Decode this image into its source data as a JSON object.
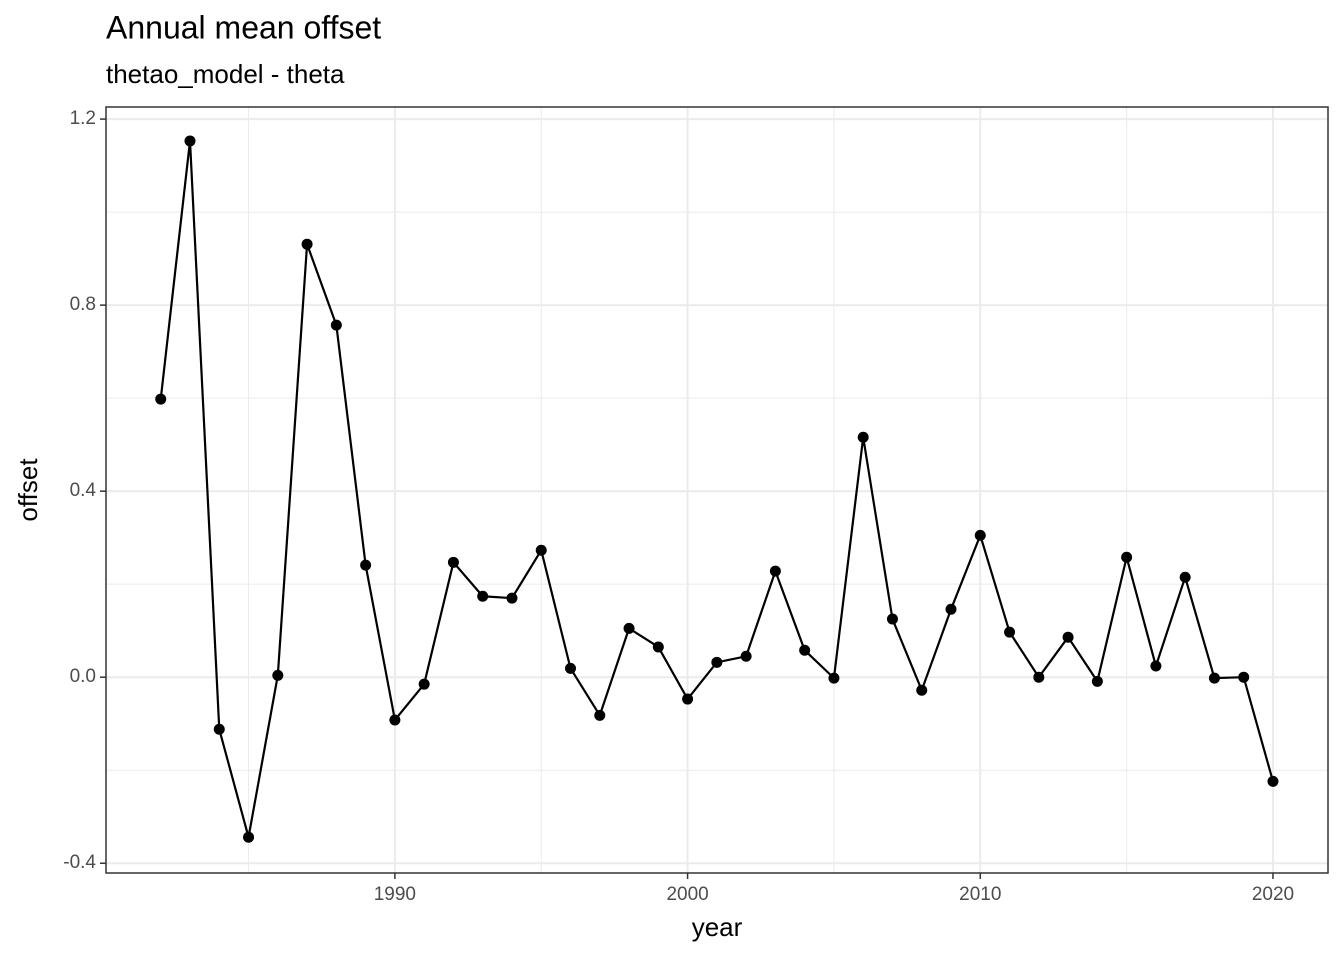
{
  "chart_data": {
    "type": "line",
    "title": "Annual mean offset",
    "subtitle": "thetao_model - theta",
    "x_label": "year",
    "y_label": "offset",
    "x": [
      1982,
      1983,
      1984,
      1985,
      1986,
      1987,
      1988,
      1989,
      1990,
      1991,
      1992,
      1993,
      1994,
      1995,
      1996,
      1997,
      1998,
      1999,
      2000,
      2001,
      2002,
      2003,
      2004,
      2005,
      2006,
      2007,
      2008,
      2009,
      2010,
      2011,
      2012,
      2013,
      2014,
      2015,
      2016,
      2017,
      2018,
      2019,
      2020
    ],
    "series": [
      {
        "name": "offset",
        "color": "#000000",
        "values": [
          0.598,
          1.153,
          -0.112,
          -0.344,
          0.004,
          0.931,
          0.757,
          0.241,
          -0.092,
          -0.015,
          0.247,
          0.174,
          0.17,
          0.273,
          0.019,
          -0.082,
          0.105,
          0.065,
          -0.047,
          0.032,
          0.045,
          0.228,
          0.058,
          -0.002,
          0.516,
          0.125,
          -0.028,
          0.146,
          0.305,
          0.097,
          0.0,
          0.086,
          -0.009,
          0.258,
          0.024,
          0.215,
          -0.002,
          0.0,
          -0.224
        ]
      }
    ],
    "xlim": [
      1980.13,
      2021.88
    ],
    "ylim": [
      -0.421,
      1.226
    ],
    "xticks": [
      1990,
      2000,
      2010,
      2020
    ],
    "yticks": [
      -0.4,
      {
        "value": 0,
        "label": "0.0"
      },
      0.4,
      0.8,
      1.2
    ],
    "xminor": [
      1985,
      1995,
      2005,
      2015
    ],
    "yminor": [
      -0.2,
      0.2,
      0.6,
      1.0
    ],
    "grid": true
  }
}
